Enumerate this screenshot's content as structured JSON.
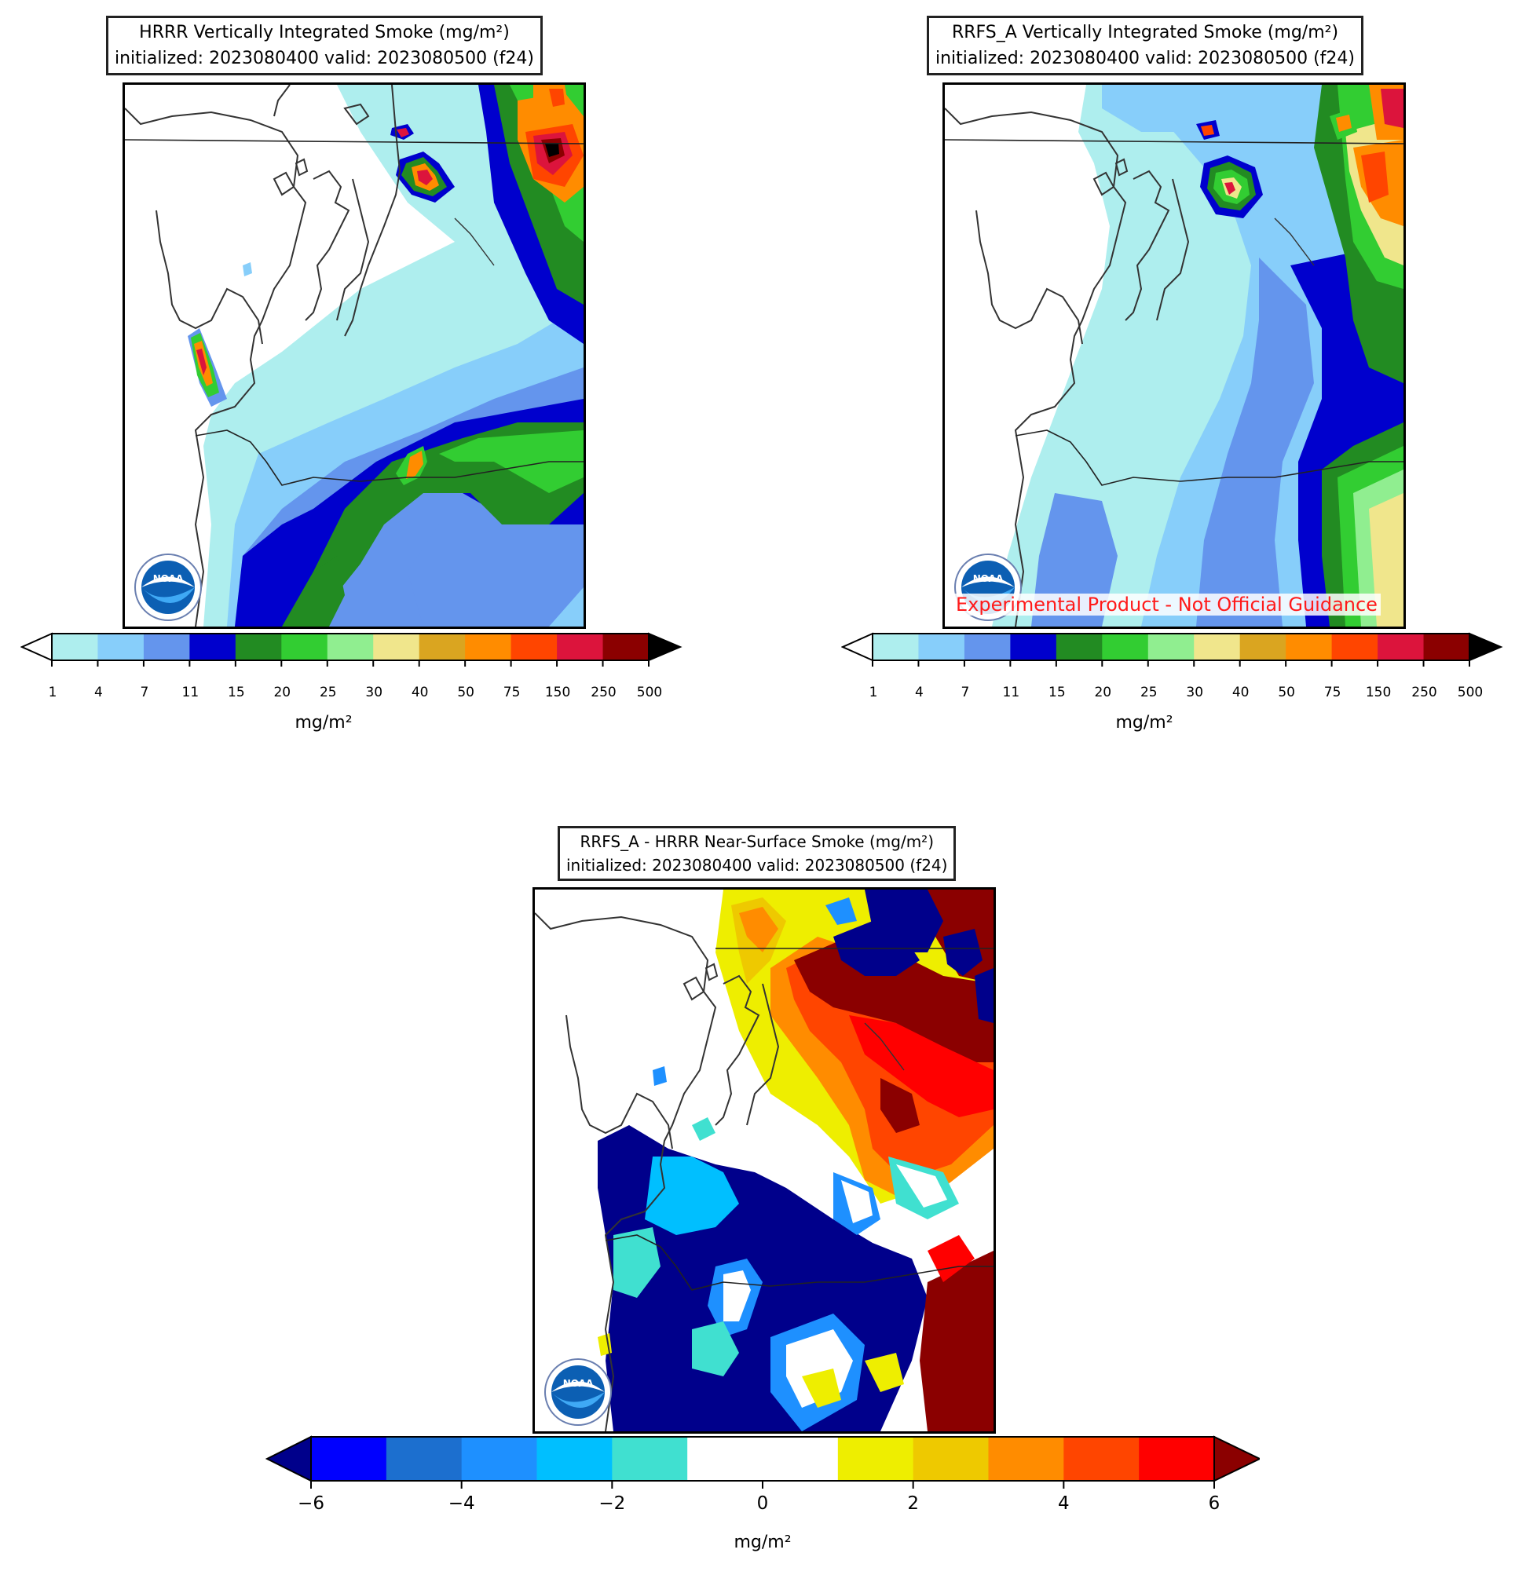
{
  "panels": {
    "hrrr": {
      "title_line1": "HRRR Vertically Integrated Smoke (mg/m²)",
      "title_line2": "initialized: 2023080400 valid: 2023080500 (f24)"
    },
    "rrfs": {
      "title_line1": "RRFS_A Vertically Integrated Smoke (mg/m²)",
      "title_line2": "initialized: 2023080400 valid: 2023080500 (f24)",
      "watermark": "Experimental Product - Not Official Guidance"
    },
    "diff": {
      "title_line1": "RRFS_A - HRRR Near-Surface Smoke (mg/m²)",
      "title_line2": "initialized: 2023080400 valid: 2023080500 (f24)"
    }
  },
  "logo": {
    "text": "NOAA",
    "icon": "noaa-logo"
  },
  "smoke_colorbar": {
    "unit": "mg/m²",
    "ticks": [
      "1",
      "4",
      "7",
      "11",
      "15",
      "20",
      "25",
      "30",
      "40",
      "50",
      "75",
      "150",
      "250",
      "500"
    ],
    "colors": [
      "#aeeeee",
      "#87cefa",
      "#6495ed",
      "#0000cd",
      "#228b22",
      "#32cd32",
      "#90ee90",
      "#f0e68c",
      "#daa520",
      "#ff8c00",
      "#ff4500",
      "#dc143c",
      "#8b0000"
    ],
    "under_color": "#ffffff",
    "over_color": "#000000"
  },
  "diff_colorbar": {
    "unit": "mg/m²",
    "ticks": [
      "−6",
      "−4",
      "−2",
      "0",
      "2",
      "4",
      "6"
    ],
    "colors": [
      "#0000ff",
      "#1c6fcf",
      "#1e90ff",
      "#00bfff",
      "#40e0d0",
      "#ffffff",
      "#ffffff",
      "#eeee00",
      "#eec900",
      "#ff8c00",
      "#ff4500",
      "#ff0000"
    ],
    "under_color": "#00008b",
    "over_color": "#8b0000"
  }
}
